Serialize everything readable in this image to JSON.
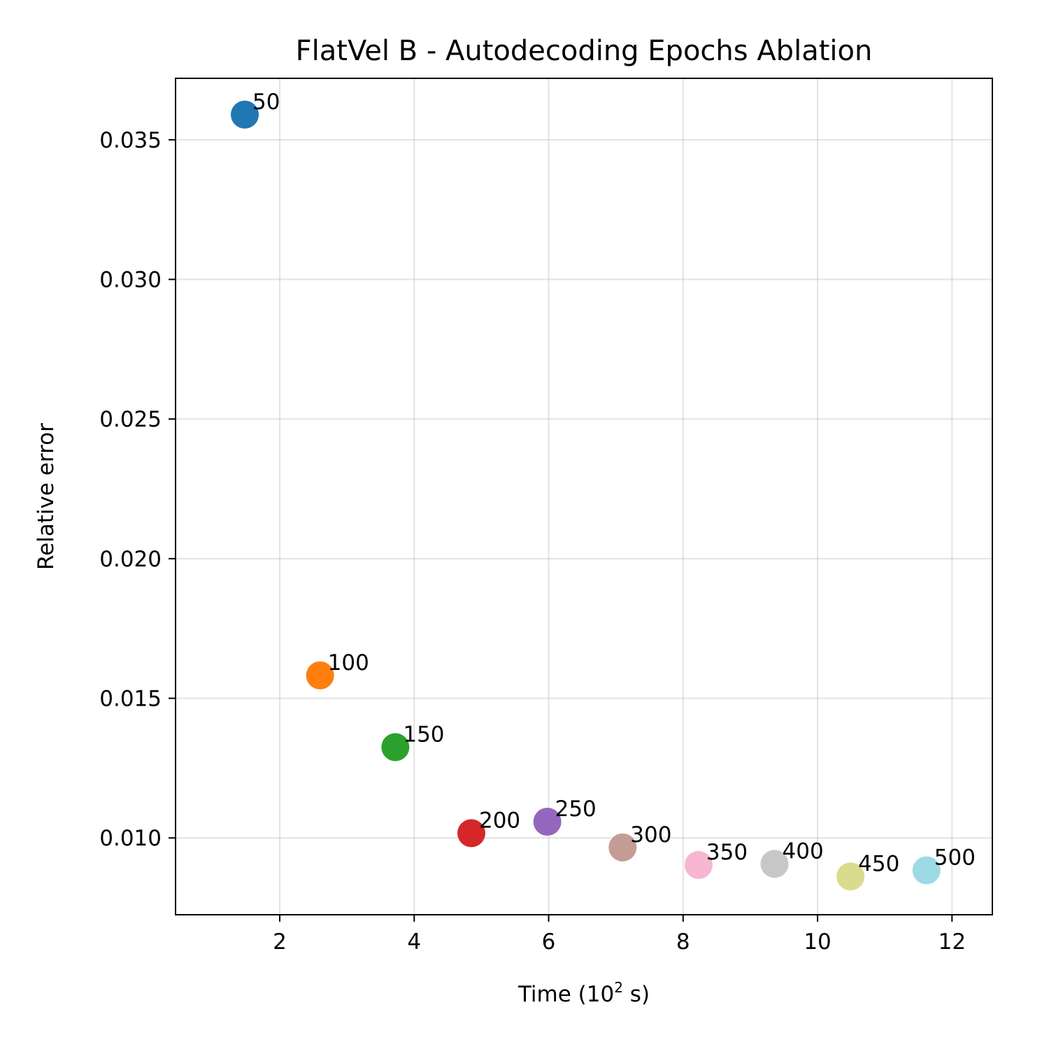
{
  "chart_data": {
    "type": "scatter",
    "title": "FlatVel B - Autodecoding Epochs Ablation",
    "xlabel": "Time (10",
    "xlabel_sup": "2",
    "xlabel_suffix": " s)",
    "ylabel": "Relative error",
    "xlim": [
      0.45,
      12.6
    ],
    "ylim": [
      0.00725,
      0.0372
    ],
    "xticks": [
      2,
      4,
      6,
      8,
      10,
      12
    ],
    "xtick_labels": [
      "2",
      "4",
      "6",
      "8",
      "10",
      "12"
    ],
    "yticks": [
      0.01,
      0.015,
      0.02,
      0.025,
      0.03,
      0.035
    ],
    "ytick_labels": [
      "0.010",
      "0.015",
      "0.020",
      "0.025",
      "0.030",
      "0.035"
    ],
    "grid": true,
    "points": [
      {
        "label": "50",
        "x": 1.48,
        "y": 0.0359,
        "color": "#1f77b4"
      },
      {
        "label": "100",
        "x": 2.6,
        "y": 0.01582,
        "color": "#ff7f0e"
      },
      {
        "label": "150",
        "x": 3.72,
        "y": 0.01325,
        "color": "#2ca02c"
      },
      {
        "label": "200",
        "x": 4.85,
        "y": 0.01017,
        "color": "#d62728"
      },
      {
        "label": "250",
        "x": 5.98,
        "y": 0.01058,
        "color": "#9467bd"
      },
      {
        "label": "300",
        "x": 7.1,
        "y": 0.00966,
        "color": "#c49c94"
      },
      {
        "label": "350",
        "x": 8.23,
        "y": 0.00903,
        "color": "#f7b6d2"
      },
      {
        "label": "400",
        "x": 9.36,
        "y": 0.00907,
        "color": "#c7c7c7"
      },
      {
        "label": "450",
        "x": 10.49,
        "y": 0.00862,
        "color": "#dbdb8d"
      },
      {
        "label": "500",
        "x": 11.62,
        "y": 0.00884,
        "color": "#9edae5"
      }
    ]
  }
}
